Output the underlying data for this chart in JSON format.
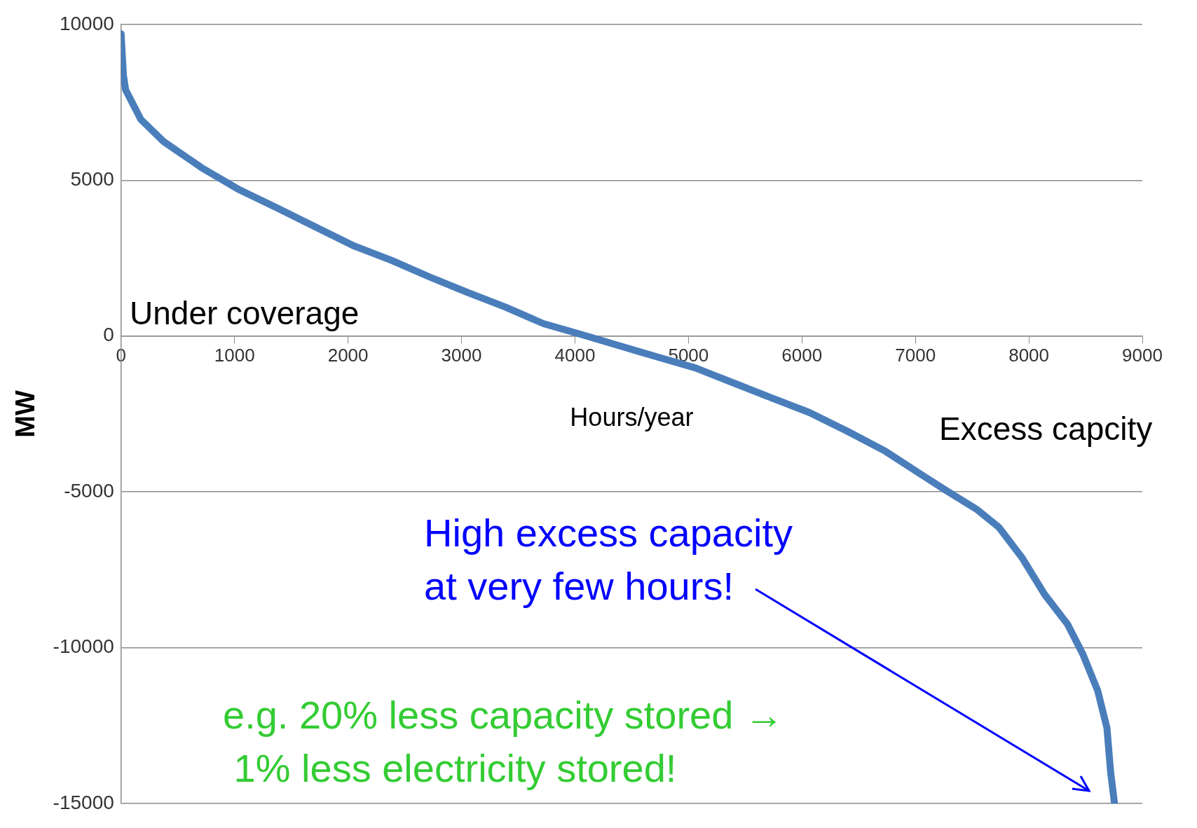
{
  "chart_data": {
    "type": "line",
    "xlabel": "Hours/year",
    "ylabel": "MW",
    "xlim": [
      0,
      9000
    ],
    "xticks": [
      0,
      1000,
      2000,
      3000,
      4000,
      5000,
      6000,
      7000,
      8000,
      9000
    ],
    "ylim": [
      -15000,
      10000
    ],
    "yticks": [
      -15000,
      -10000,
      -5000,
      0,
      5000,
      10000
    ],
    "grid": "y",
    "legend": false,
    "marker": "none",
    "line_style": "solid",
    "series": [
      {
        "color": "#4a7ebb",
        "x": [
          0,
          20,
          40,
          174,
          375,
          710,
          1044,
          1380,
          1713,
          2048,
          2383,
          2717,
          3052,
          3387,
          3722,
          4056,
          4390,
          4725,
          5060,
          5395,
          5730,
          6064,
          6399,
          6733,
          7068,
          7269,
          7537,
          7737,
          7938,
          8139,
          8340,
          8474,
          8607,
          8688,
          8721,
          8755
        ],
        "values": [
          9700,
          8380,
          7900,
          6950,
          6240,
          5400,
          4690,
          4100,
          3500,
          2900,
          2430,
          1900,
          1400,
          930,
          400,
          50,
          -310,
          -670,
          -1020,
          -1500,
          -1980,
          -2450,
          -3050,
          -3690,
          -4480,
          -4950,
          -5550,
          -6140,
          -7100,
          -8290,
          -9240,
          -10190,
          -11380,
          -12570,
          -14000,
          -15000
        ]
      }
    ],
    "annotations": [
      "Under coverage",
      "Excess capcity",
      "High excess capacity\nat very few hours!",
      "e.g. 20% less capacity stored →\n 1% less electricity stored!"
    ]
  }
}
